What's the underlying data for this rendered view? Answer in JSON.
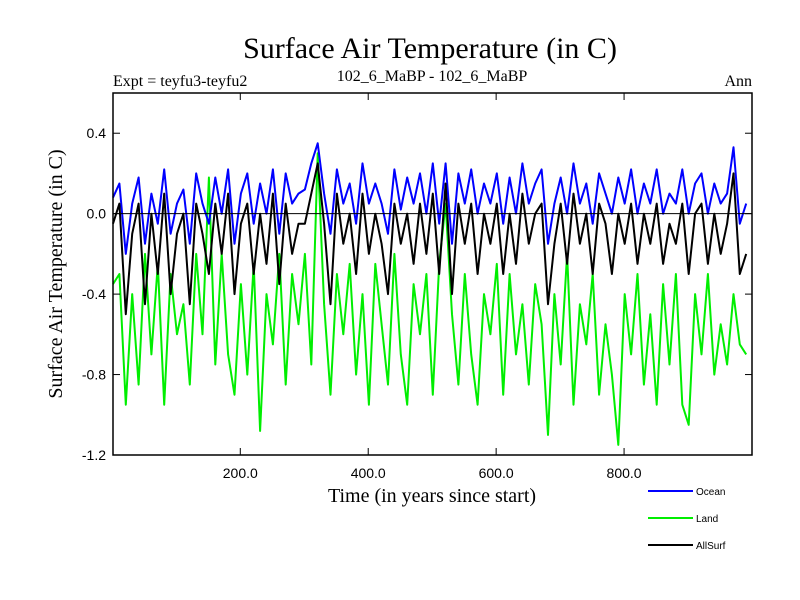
{
  "chart_data": {
    "type": "line",
    "title": "Surface Air Temperature (in C)",
    "subtitle_left": "Expt = teyfu3-teyfu2",
    "subtitle_center": "102_6_MaBP - 102_6_MaBP",
    "subtitle_right": "Ann",
    "xlabel": "Time (in years since start)",
    "ylabel": "Surface Air Temperature (in C)",
    "xlim": [
      1,
      1000
    ],
    "ylim": [
      -1.2,
      0.6
    ],
    "x_ticks": [
      200,
      400,
      600,
      800
    ],
    "x_tick_labels": [
      "200.0",
      "400.0",
      "600.0",
      "800.0"
    ],
    "y_ticks": [
      -1.2,
      -0.8,
      -0.4,
      0.0,
      0.4
    ],
    "y_tick_labels": [
      "-1.2",
      "-0.8",
      "-0.4",
      "0.0",
      "0.4"
    ],
    "zero_line": 0.0,
    "legend_position": "bottom-right",
    "series": [
      {
        "name": "Land",
        "color": "#00ee00",
        "x_start": 1,
        "x_step": 10,
        "values": [
          -0.35,
          -0.3,
          -0.95,
          -0.4,
          -0.85,
          -0.2,
          -0.7,
          -0.25,
          -0.95,
          -0.3,
          -0.6,
          -0.45,
          -0.85,
          -0.2,
          -0.6,
          0.18,
          -0.75,
          -0.2,
          -0.7,
          -0.9,
          -0.35,
          -0.8,
          -0.25,
          -1.08,
          -0.4,
          -0.65,
          -0.2,
          -0.85,
          -0.3,
          -0.55,
          -0.2,
          -0.75,
          0.3,
          -0.45,
          -0.9,
          -0.3,
          -0.6,
          -0.25,
          -0.8,
          -0.4,
          -0.95,
          -0.25,
          -0.55,
          -0.85,
          -0.2,
          -0.7,
          -0.95,
          -0.35,
          -0.6,
          -0.3,
          -0.9,
          -0.25,
          0.05,
          -0.5,
          -0.85,
          -0.3,
          -0.7,
          -0.95,
          -0.4,
          -0.6,
          -0.25,
          -0.9,
          -0.3,
          -0.7,
          -0.45,
          -0.85,
          -0.35,
          -0.55,
          -1.1,
          -0.4,
          -0.75,
          -0.2,
          -0.95,
          -0.45,
          -0.65,
          -0.3,
          -0.9,
          -0.55,
          -0.8,
          -1.15,
          -0.4,
          -0.7,
          -0.3,
          -0.85,
          -0.5,
          -0.95,
          -0.35,
          -0.75,
          -0.3,
          -0.95,
          -1.05,
          -0.4,
          -0.7,
          -0.3,
          -0.8,
          -0.55,
          -0.75,
          -0.4,
          -0.65,
          -0.7
        ]
      },
      {
        "name": "Ocean",
        "color": "#0000ff",
        "x_start": 1,
        "x_step": 10,
        "values": [
          0.08,
          0.15,
          -0.2,
          0.05,
          0.18,
          -0.15,
          0.1,
          -0.05,
          0.22,
          -0.1,
          0.05,
          0.12,
          -0.15,
          0.2,
          0.05,
          -0.05,
          0.18,
          0.0,
          0.22,
          -0.15,
          0.1,
          0.2,
          -0.05,
          0.15,
          0.0,
          0.22,
          -0.1,
          0.2,
          0.05,
          0.1,
          0.12,
          0.25,
          0.35,
          0.1,
          -0.1,
          0.22,
          0.05,
          0.15,
          -0.05,
          0.25,
          0.05,
          0.15,
          0.05,
          -0.1,
          0.22,
          0.02,
          0.18,
          0.05,
          0.2,
          0.0,
          0.25,
          -0.05,
          0.25,
          -0.15,
          0.2,
          0.05,
          0.22,
          0.0,
          0.15,
          0.05,
          0.2,
          -0.05,
          0.18,
          0.0,
          0.25,
          0.05,
          0.15,
          0.22,
          -0.15,
          0.05,
          0.18,
          0.0,
          0.25,
          0.05,
          0.15,
          -0.05,
          0.2,
          0.1,
          0.0,
          0.18,
          0.05,
          0.22,
          0.0,
          0.15,
          0.05,
          0.22,
          0.0,
          0.1,
          0.05,
          0.22,
          0.0,
          0.15,
          0.2,
          0.0,
          0.15,
          0.05,
          0.1,
          0.33,
          -0.05,
          0.05
        ]
      },
      {
        "name": "AllSurf",
        "color": "#000000",
        "x_start": 1,
        "x_step": 10,
        "values": [
          -0.05,
          0.05,
          -0.5,
          -0.1,
          0.05,
          -0.45,
          0.0,
          -0.3,
          0.1,
          -0.4,
          -0.1,
          0.0,
          -0.45,
          0.05,
          -0.1,
          -0.3,
          0.05,
          -0.2,
          0.1,
          -0.4,
          -0.05,
          0.05,
          -0.3,
          0.0,
          -0.25,
          0.1,
          -0.35,
          0.05,
          -0.2,
          -0.05,
          -0.05,
          0.1,
          0.25,
          -0.05,
          -0.45,
          0.1,
          -0.15,
          0.0,
          -0.3,
          0.1,
          -0.2,
          0.0,
          -0.15,
          -0.4,
          0.05,
          -0.15,
          0.0,
          -0.25,
          0.05,
          -0.2,
          0.1,
          -0.3,
          0.15,
          -0.4,
          0.05,
          -0.15,
          0.05,
          -0.3,
          0.0,
          -0.15,
          0.05,
          -0.3,
          0.0,
          -0.25,
          0.1,
          -0.15,
          0.0,
          0.05,
          -0.45,
          -0.15,
          0.05,
          -0.25,
          0.1,
          -0.15,
          0.0,
          -0.3,
          0.05,
          -0.05,
          -0.3,
          0.0,
          -0.15,
          0.05,
          -0.25,
          0.0,
          -0.15,
          0.05,
          -0.25,
          -0.05,
          -0.15,
          0.05,
          -0.3,
          0.0,
          0.05,
          -0.25,
          0.0,
          -0.2,
          -0.05,
          0.2,
          -0.3,
          -0.2
        ]
      }
    ]
  }
}
